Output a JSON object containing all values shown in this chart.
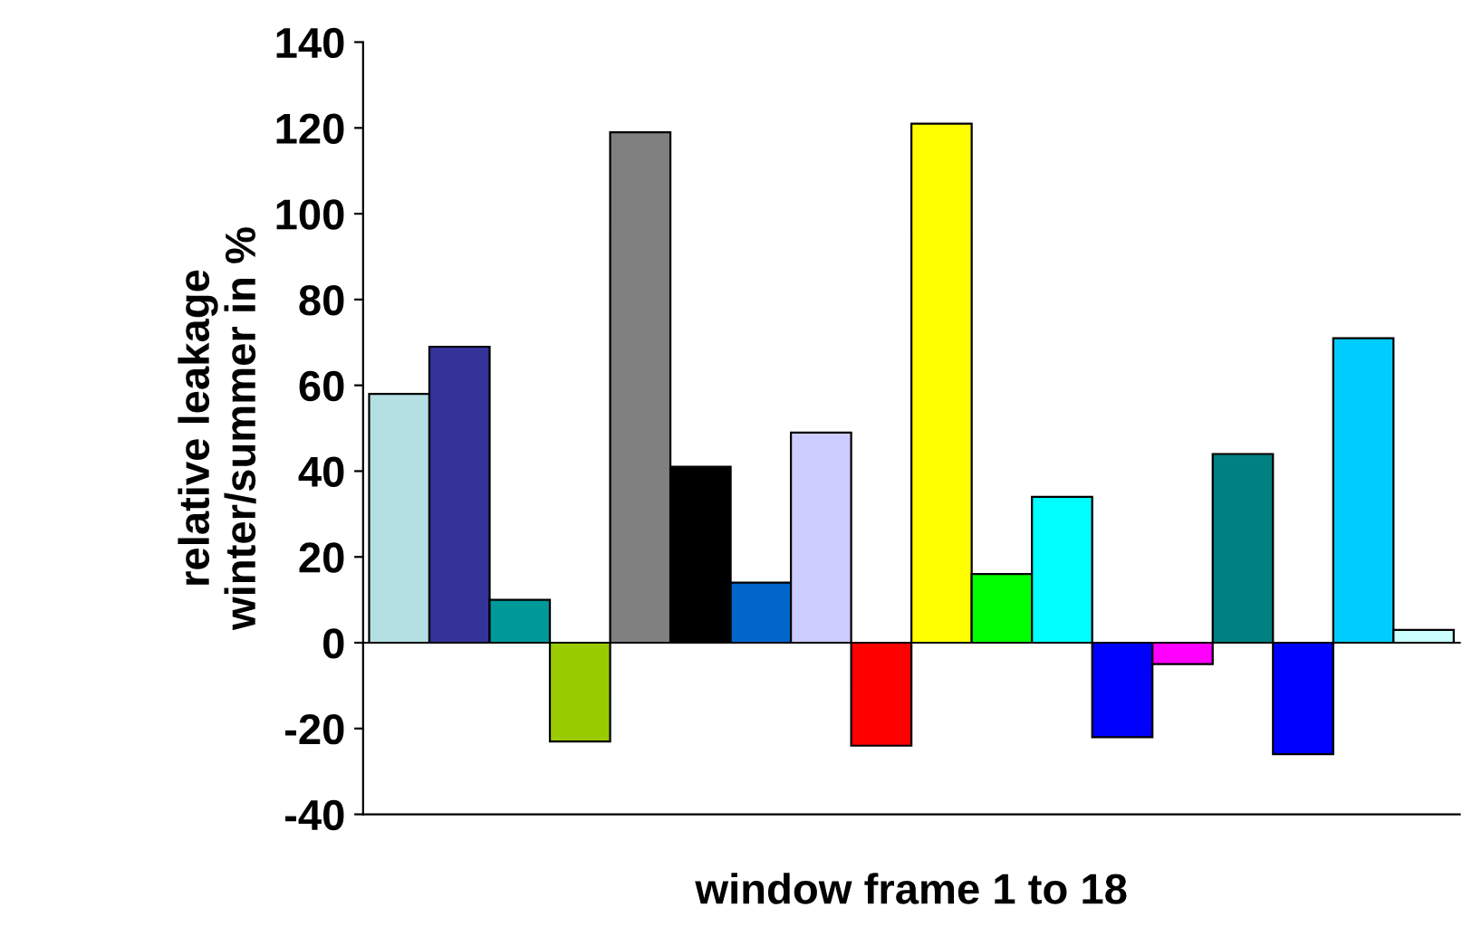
{
  "chart_data": {
    "type": "bar",
    "xlabel": "window frame 1 to 18",
    "ylabel": "relative leakage\nwinter/summer in %",
    "categories": [
      null,
      null,
      null,
      null,
      null,
      null,
      null,
      null,
      null,
      null,
      null,
      null,
      null,
      null,
      null,
      null,
      null,
      null
    ],
    "values": [
      58,
      69,
      10,
      -23,
      119,
      41,
      14,
      49,
      -24,
      121,
      16,
      34,
      -22,
      -5,
      44,
      -26,
      71,
      3
    ],
    "colors": [
      "#b4dfe3",
      "#333399",
      "#009999",
      "#99cc00",
      "#808080",
      "#000000",
      "#0066cc",
      "#ccccff",
      "#ff0000",
      "#ffff00",
      "#00ff00",
      "#00ffff",
      "#0000ff",
      "#ff00ff",
      "#008080",
      "#0000ff",
      "#00ccff",
      "#ccffff"
    ],
    "ylim": [
      -40,
      140
    ],
    "yticks": [
      -40,
      -20,
      0,
      20,
      40,
      60,
      80,
      100,
      120,
      140
    ],
    "legend": false
  }
}
